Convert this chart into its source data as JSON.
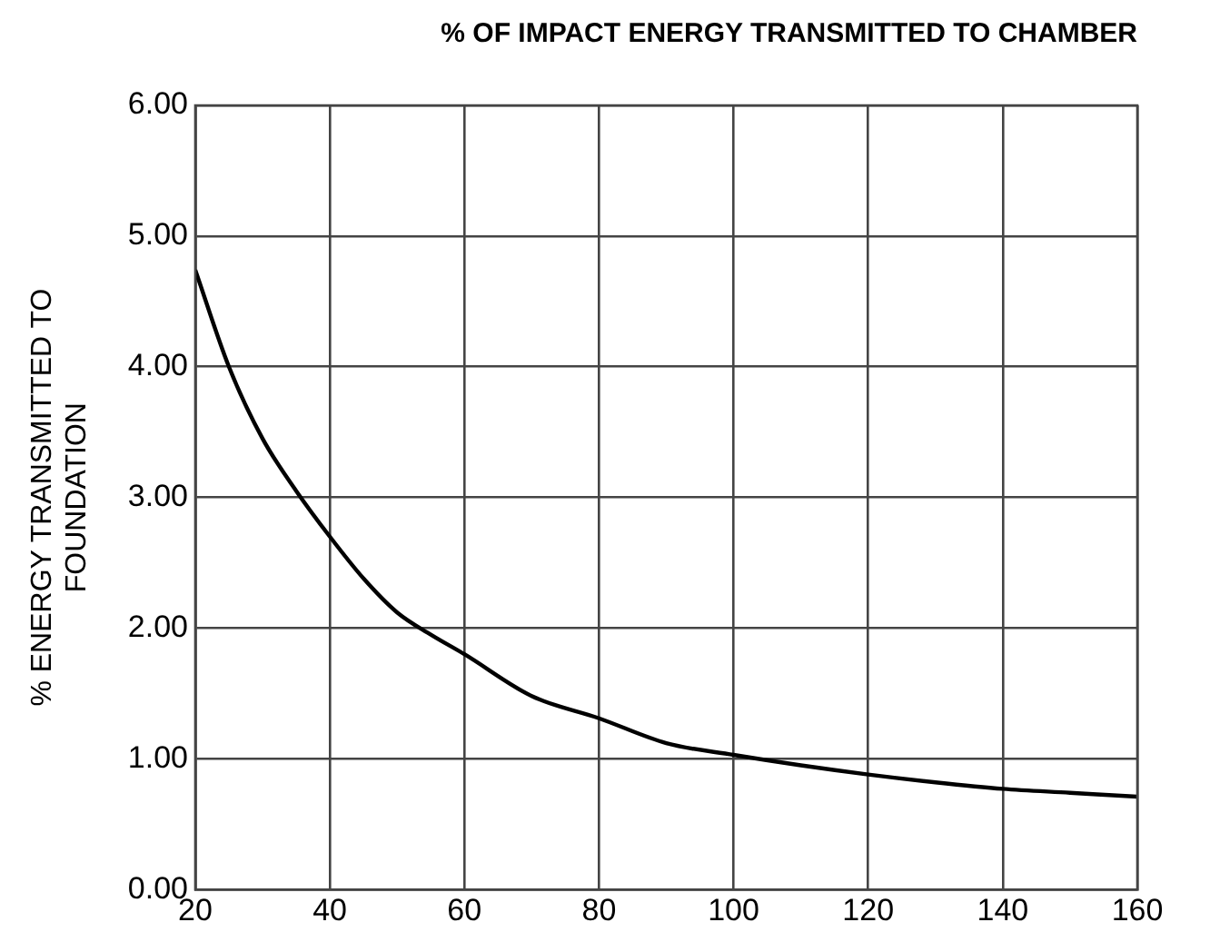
{
  "chart_data": {
    "type": "line",
    "title": "% OF IMPACT ENERGY TRANSMITTED TO CHAMBER",
    "ylabel": "% ENERGY TRANSMITTED TO\nFOUNDATION",
    "x": [
      20,
      25,
      30,
      35,
      40,
      45,
      50,
      55,
      60,
      70,
      80,
      90,
      100,
      110,
      120,
      130,
      140,
      150,
      160
    ],
    "series": [
      {
        "color": "#000000",
        "values": [
          4.74,
          4.0,
          3.45,
          3.05,
          2.7,
          2.38,
          2.12,
          1.95,
          1.8,
          1.48,
          1.31,
          1.12,
          1.03,
          0.95,
          0.88,
          0.82,
          0.77,
          0.74,
          0.71
        ]
      }
    ],
    "xlim": [
      20,
      160
    ],
    "xticks": [
      20,
      40,
      60,
      80,
      100,
      120,
      140,
      160
    ],
    "ylim": [
      0,
      6
    ],
    "yticks": [
      {
        "value": 0,
        "label": "0.00"
      },
      {
        "value": 1,
        "label": "1.00"
      },
      {
        "value": 2,
        "label": "2.00"
      },
      {
        "value": 3,
        "label": "3.00"
      },
      {
        "value": 4,
        "label": "4.00"
      },
      {
        "value": 5,
        "label": "5.00"
      },
      {
        "value": 6,
        "label": "6.00"
      }
    ],
    "grid": true,
    "legend": false,
    "marker": "none",
    "line_style": "solid"
  }
}
